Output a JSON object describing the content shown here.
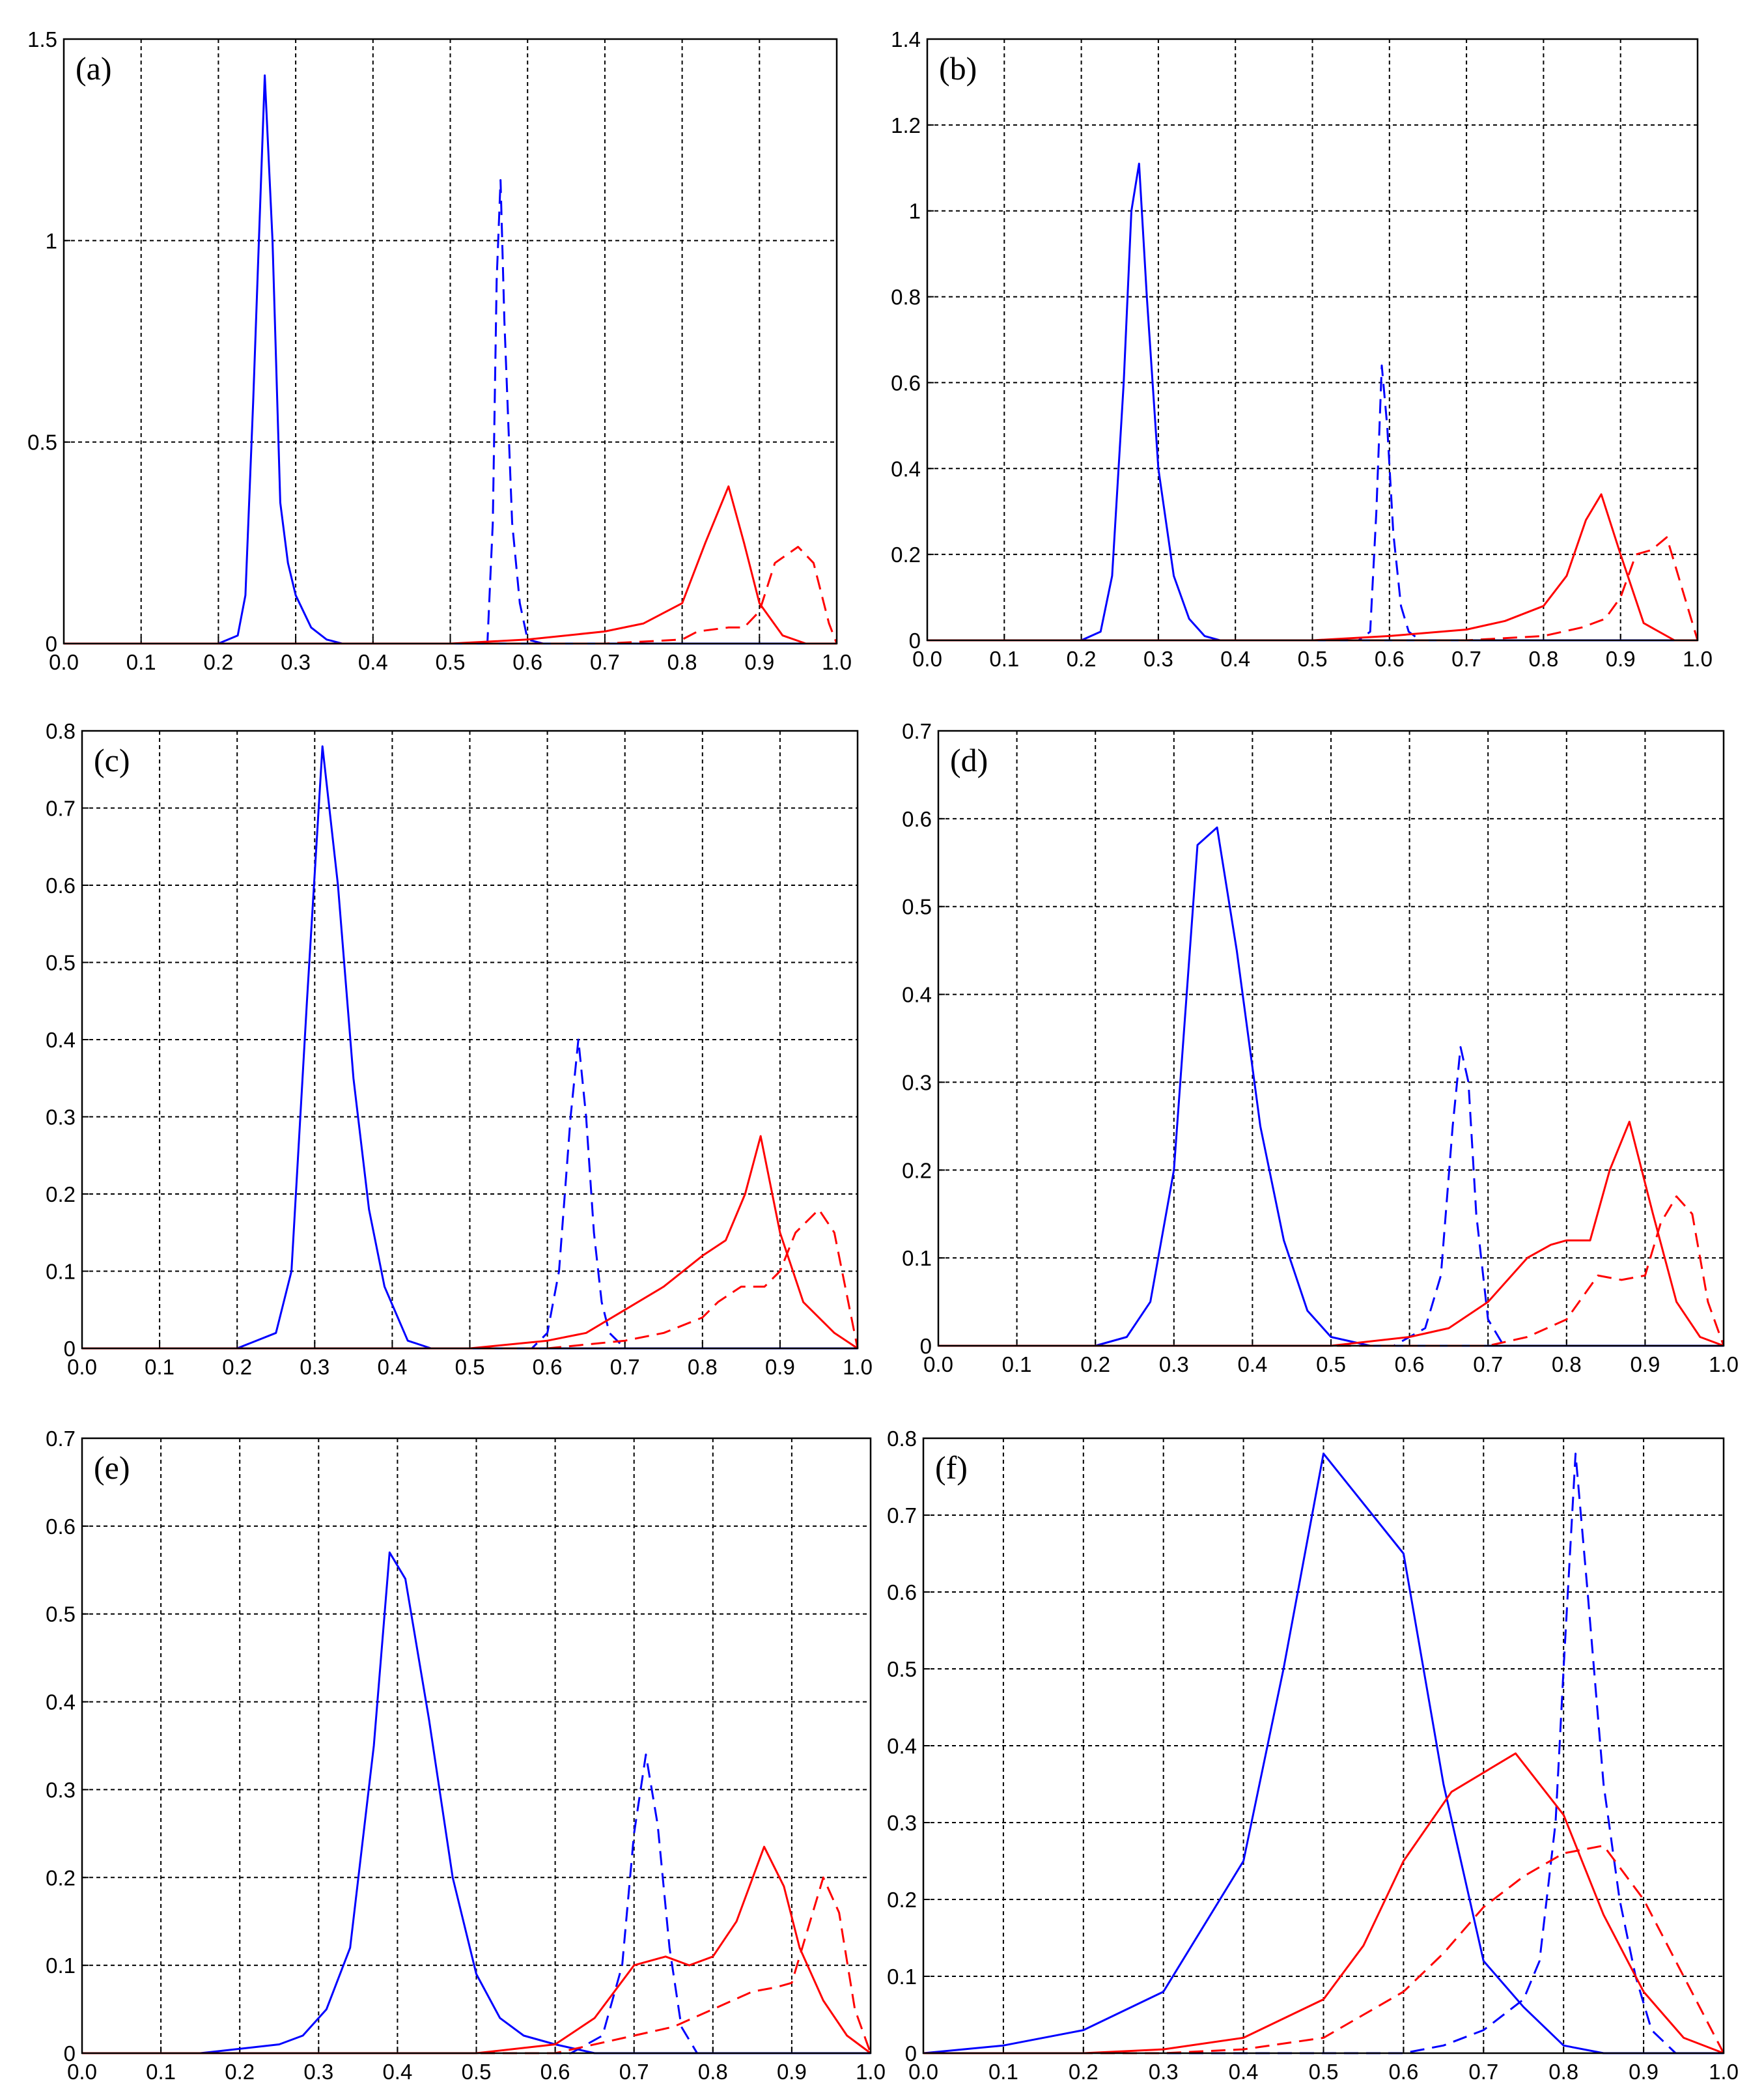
{
  "chart_data": [
    {
      "type": "line",
      "title": "(a)",
      "xlim": [
        0,
        1
      ],
      "ylim": [
        0,
        1.5
      ],
      "xticks": [
        "0.0",
        "0.1",
        "0.2",
        "0.3",
        "0.4",
        "0.5",
        "0.6",
        "0.7",
        "0.8",
        "0.9",
        "1.0"
      ],
      "yticks": [
        [
          "0",
          "0"
        ],
        [
          "0.5",
          "0.5"
        ],
        [
          "1",
          "1"
        ],
        [
          "1.5",
          "1.5"
        ]
      ],
      "grid": true,
      "series": [
        {
          "color": "#0000ff",
          "dash": "solid",
          "x": [
            0,
            0.2,
            0.225,
            0.235,
            0.245,
            0.26,
            0.27,
            0.28,
            0.29,
            0.3,
            0.32,
            0.34,
            0.36,
            1
          ],
          "y": [
            0,
            0,
            0.02,
            0.12,
            0.6,
            1.41,
            1.0,
            0.35,
            0.2,
            0.12,
            0.04,
            0.01,
            0,
            0
          ]
        },
        {
          "color": "#0000ff",
          "dash": "dashed",
          "x": [
            0,
            0.53,
            0.548,
            0.555,
            0.56,
            0.565,
            0.57,
            0.58,
            0.59,
            0.6,
            0.62,
            1
          ],
          "y": [
            0,
            0,
            0,
            0.3,
            0.9,
            1.15,
            0.8,
            0.3,
            0.1,
            0.01,
            0,
            0
          ]
        },
        {
          "color": "#ff0000",
          "dash": "solid",
          "x": [
            0,
            0.5,
            0.6,
            0.7,
            0.75,
            0.8,
            0.83,
            0.86,
            0.88,
            0.9,
            0.93,
            0.96,
            1
          ],
          "y": [
            0,
            0,
            0.01,
            0.03,
            0.05,
            0.1,
            0.25,
            0.39,
            0.25,
            0.1,
            0.02,
            0,
            0
          ]
        },
        {
          "color": "#ff0000",
          "dash": "dashed",
          "x": [
            0,
            0.7,
            0.8,
            0.82,
            0.86,
            0.88,
            0.9,
            0.92,
            0.95,
            0.97,
            0.99,
            1
          ],
          "y": [
            0,
            0,
            0.01,
            0.03,
            0.04,
            0.04,
            0.08,
            0.2,
            0.24,
            0.2,
            0.05,
            0
          ]
        }
      ]
    },
    {
      "type": "line",
      "title": "(b)",
      "xlim": [
        0,
        1
      ],
      "ylim": [
        0,
        1.4
      ],
      "xticks": [
        "0.0",
        "0.1",
        "0.2",
        "0.3",
        "0.4",
        "0.5",
        "0.6",
        "0.7",
        "0.8",
        "0.9",
        "1.0"
      ],
      "yticks": [
        [
          "0",
          "0"
        ],
        [
          "0.2",
          "0.2"
        ],
        [
          "0.4",
          "0.4"
        ],
        [
          "0.6",
          "0.6"
        ],
        [
          "0.8",
          "0.8"
        ],
        [
          "1",
          "1"
        ],
        [
          "1.2",
          "1.2"
        ],
        [
          "1.4",
          "1.4"
        ]
      ],
      "grid": true,
      "series": [
        {
          "color": "#0000ff",
          "dash": "solid",
          "x": [
            0,
            0.2,
            0.225,
            0.24,
            0.255,
            0.265,
            0.275,
            0.285,
            0.3,
            0.32,
            0.34,
            0.36,
            0.38,
            1
          ],
          "y": [
            0,
            0,
            0.02,
            0.15,
            0.6,
            1.0,
            1.11,
            0.8,
            0.4,
            0.15,
            0.05,
            0.01,
            0,
            0
          ]
        },
        {
          "color": "#0000ff",
          "dash": "dashed",
          "x": [
            0,
            0.56,
            0.575,
            0.583,
            0.59,
            0.597,
            0.605,
            0.615,
            0.625,
            0.64,
            1
          ],
          "y": [
            0,
            0,
            0.02,
            0.3,
            0.64,
            0.5,
            0.25,
            0.08,
            0.02,
            0,
            0
          ]
        },
        {
          "color": "#ff0000",
          "dash": "solid",
          "x": [
            0,
            0.5,
            0.6,
            0.7,
            0.75,
            0.8,
            0.83,
            0.855,
            0.875,
            0.9,
            0.93,
            0.97,
            1
          ],
          "y": [
            0,
            0,
            0.01,
            0.025,
            0.045,
            0.08,
            0.15,
            0.28,
            0.34,
            0.2,
            0.04,
            0,
            0
          ]
        },
        {
          "color": "#ff0000",
          "dash": "dashed",
          "x": [
            0,
            0.7,
            0.8,
            0.85,
            0.88,
            0.9,
            0.92,
            0.94,
            0.96,
            0.98,
            1
          ],
          "y": [
            0,
            0,
            0.01,
            0.03,
            0.05,
            0.1,
            0.2,
            0.21,
            0.24,
            0.12,
            0
          ]
        }
      ]
    },
    {
      "type": "line",
      "title": "(c)",
      "xlim": [
        0,
        1
      ],
      "ylim": [
        0,
        0.8
      ],
      "xticks": [
        "0.0",
        "0.1",
        "0.2",
        "0.3",
        "0.4",
        "0.5",
        "0.6",
        "0.7",
        "0.8",
        "0.9",
        "1.0"
      ],
      "yticks": [
        [
          "0",
          "0"
        ],
        [
          "0.1",
          "0.1"
        ],
        [
          "0.2",
          "0.2"
        ],
        [
          "0.3",
          "0.3"
        ],
        [
          "0.4",
          "0.4"
        ],
        [
          "0.5",
          "0.5"
        ],
        [
          "0.6",
          "0.6"
        ],
        [
          "0.7",
          "0.7"
        ],
        [
          "0.8",
          "0.8"
        ]
      ],
      "grid": true,
      "series": [
        {
          "color": "#0000ff",
          "dash": "solid",
          "x": [
            0,
            0.2,
            0.25,
            0.27,
            0.29,
            0.31,
            0.33,
            0.35,
            0.37,
            0.39,
            0.42,
            0.45,
            1
          ],
          "y": [
            0,
            0,
            0.02,
            0.1,
            0.45,
            0.78,
            0.6,
            0.35,
            0.18,
            0.08,
            0.01,
            0,
            0
          ]
        },
        {
          "color": "#0000ff",
          "dash": "dashed",
          "x": [
            0,
            0.58,
            0.6,
            0.615,
            0.63,
            0.64,
            0.65,
            0.66,
            0.67,
            0.68,
            0.7,
            1
          ],
          "y": [
            0,
            0,
            0.02,
            0.1,
            0.3,
            0.4,
            0.3,
            0.15,
            0.06,
            0.02,
            0,
            0
          ]
        },
        {
          "color": "#ff0000",
          "dash": "solid",
          "x": [
            0,
            0.5,
            0.6,
            0.65,
            0.7,
            0.75,
            0.8,
            0.83,
            0.855,
            0.875,
            0.9,
            0.93,
            0.97,
            1
          ],
          "y": [
            0,
            0,
            0.01,
            0.02,
            0.05,
            0.08,
            0.12,
            0.14,
            0.2,
            0.275,
            0.15,
            0.06,
            0.02,
            0
          ]
        },
        {
          "color": "#ff0000",
          "dash": "dashed",
          "x": [
            0,
            0.6,
            0.7,
            0.75,
            0.8,
            0.82,
            0.85,
            0.88,
            0.9,
            0.92,
            0.95,
            0.97,
            0.99,
            1
          ],
          "y": [
            0,
            0,
            0.01,
            0.02,
            0.04,
            0.06,
            0.08,
            0.08,
            0.1,
            0.15,
            0.18,
            0.15,
            0.05,
            0
          ]
        }
      ]
    },
    {
      "type": "line",
      "title": "(d)",
      "xlim": [
        0,
        1
      ],
      "ylim": [
        0,
        0.7
      ],
      "xticks": [
        "0.0",
        "0.1",
        "0.2",
        "0.3",
        "0.4",
        "0.5",
        "0.6",
        "0.7",
        "0.8",
        "0.9",
        "1.0"
      ],
      "yticks": [
        [
          "0",
          "0"
        ],
        [
          "0.1",
          "0.1"
        ],
        [
          "0.2",
          "0.2"
        ],
        [
          "0.3",
          "0.3"
        ],
        [
          "0.4",
          "0.4"
        ],
        [
          "0.5",
          "0.5"
        ],
        [
          "0.6",
          "0.6"
        ],
        [
          "0.7",
          "0.7"
        ]
      ],
      "grid": true,
      "series": [
        {
          "color": "#0000ff",
          "dash": "solid",
          "x": [
            0,
            0.15,
            0.2,
            0.24,
            0.27,
            0.3,
            0.33,
            0.355,
            0.38,
            0.41,
            0.44,
            0.47,
            0.5,
            0.55,
            0.6,
            1
          ],
          "y": [
            0,
            0,
            0,
            0.01,
            0.05,
            0.2,
            0.57,
            0.59,
            0.45,
            0.25,
            0.12,
            0.04,
            0.01,
            0,
            0,
            0
          ]
        },
        {
          "color": "#0000ff",
          "dash": "dashed",
          "x": [
            0,
            0.58,
            0.62,
            0.64,
            0.655,
            0.665,
            0.675,
            0.685,
            0.7,
            0.72,
            1
          ],
          "y": [
            0,
            0,
            0.02,
            0.08,
            0.25,
            0.34,
            0.3,
            0.15,
            0.03,
            0,
            0
          ]
        },
        {
          "color": "#ff0000",
          "dash": "solid",
          "x": [
            0,
            0.5,
            0.6,
            0.65,
            0.7,
            0.75,
            0.78,
            0.8,
            0.83,
            0.855,
            0.88,
            0.91,
            0.94,
            0.97,
            1
          ],
          "y": [
            0,
            0,
            0.01,
            0.02,
            0.05,
            0.1,
            0.115,
            0.12,
            0.12,
            0.2,
            0.255,
            0.15,
            0.05,
            0.01,
            0
          ]
        },
        {
          "color": "#ff0000",
          "dash": "dashed",
          "x": [
            0,
            0.7,
            0.75,
            0.8,
            0.84,
            0.87,
            0.9,
            0.92,
            0.94,
            0.96,
            0.98,
            1
          ],
          "y": [
            0,
            0,
            0.01,
            0.03,
            0.08,
            0.075,
            0.08,
            0.14,
            0.17,
            0.15,
            0.05,
            0
          ]
        }
      ]
    },
    {
      "type": "line",
      "title": "(e)",
      "xlim": [
        0,
        1
      ],
      "ylim": [
        0,
        0.7
      ],
      "xticks": [
        "0.0",
        "0.1",
        "0.2",
        "0.3",
        "0.4",
        "0.5",
        "0.6",
        "0.7",
        "0.8",
        "0.9",
        "1.0"
      ],
      "yticks": [
        [
          "0",
          "0"
        ],
        [
          "0.1",
          "0.1"
        ],
        [
          "0.2",
          "0.2"
        ],
        [
          "0.3",
          "0.3"
        ],
        [
          "0.4",
          "0.4"
        ],
        [
          "0.5",
          "0.5"
        ],
        [
          "0.6",
          "0.6"
        ],
        [
          "0.7",
          "0.7"
        ]
      ],
      "grid": true,
      "series": [
        {
          "color": "#0000ff",
          "dash": "solid",
          "x": [
            0,
            0.15,
            0.25,
            0.28,
            0.31,
            0.34,
            0.37,
            0.39,
            0.41,
            0.44,
            0.47,
            0.5,
            0.53,
            0.56,
            0.6,
            0.65,
            1
          ],
          "y": [
            0,
            0,
            0.01,
            0.02,
            0.05,
            0.12,
            0.35,
            0.57,
            0.54,
            0.38,
            0.2,
            0.09,
            0.04,
            0.02,
            0.01,
            0,
            0
          ]
        },
        {
          "color": "#0000ff",
          "dash": "dashed",
          "x": [
            0,
            0.62,
            0.66,
            0.685,
            0.7,
            0.715,
            0.73,
            0.745,
            0.76,
            0.78,
            1
          ],
          "y": [
            0,
            0,
            0.02,
            0.1,
            0.25,
            0.34,
            0.26,
            0.12,
            0.03,
            0,
            0
          ]
        },
        {
          "color": "#ff0000",
          "dash": "solid",
          "x": [
            0,
            0.5,
            0.6,
            0.65,
            0.7,
            0.74,
            0.77,
            0.8,
            0.83,
            0.865,
            0.89,
            0.91,
            0.94,
            0.97,
            1
          ],
          "y": [
            0,
            0,
            0.01,
            0.04,
            0.1,
            0.11,
            0.1,
            0.11,
            0.15,
            0.235,
            0.19,
            0.12,
            0.06,
            0.02,
            0
          ]
        },
        {
          "color": "#ff0000",
          "dash": "dashed",
          "x": [
            0,
            0.6,
            0.7,
            0.75,
            0.8,
            0.85,
            0.88,
            0.9,
            0.92,
            0.94,
            0.96,
            0.98,
            1
          ],
          "y": [
            0,
            0,
            0.02,
            0.03,
            0.05,
            0.07,
            0.075,
            0.08,
            0.14,
            0.2,
            0.16,
            0.05,
            0
          ]
        }
      ]
    },
    {
      "type": "line",
      "title": "(f)",
      "xlim": [
        0,
        1
      ],
      "ylim": [
        0,
        0.8
      ],
      "xticks": [
        "0.0",
        "0.1",
        "0.2",
        "0.3",
        "0.4",
        "0.5",
        "0.6",
        "0.7",
        "0.8",
        "0.9",
        "1.0"
      ],
      "yticks": [
        [
          "0",
          "0"
        ],
        [
          "0.1",
          "0.1"
        ],
        [
          "0.2",
          "0.2"
        ],
        [
          "0.3",
          "0.3"
        ],
        [
          "0.4",
          "0.4"
        ],
        [
          "0.5",
          "0.5"
        ],
        [
          "0.6",
          "0.6"
        ],
        [
          "0.7",
          "0.7"
        ],
        [
          "0.8",
          "0.8"
        ]
      ],
      "grid": true,
      "series": [
        {
          "color": "#0000ff",
          "dash": "solid",
          "x": [
            0,
            0.1,
            0.2,
            0.3,
            0.4,
            0.45,
            0.5,
            0.6,
            0.65,
            0.7,
            0.75,
            0.8,
            0.85,
            0.9,
            1
          ],
          "y": [
            0,
            0.01,
            0.03,
            0.08,
            0.25,
            0.5,
            0.78,
            0.65,
            0.35,
            0.12,
            0.06,
            0.01,
            0,
            0,
            0
          ]
        },
        {
          "color": "#0000ff",
          "dash": "dashed",
          "x": [
            0,
            0.5,
            0.6,
            0.65,
            0.7,
            0.75,
            0.77,
            0.79,
            0.8,
            0.815,
            0.83,
            0.85,
            0.87,
            0.89,
            0.91,
            0.94,
            1
          ],
          "y": [
            0,
            0,
            0,
            0.01,
            0.03,
            0.07,
            0.12,
            0.3,
            0.5,
            0.78,
            0.6,
            0.35,
            0.2,
            0.1,
            0.03,
            0,
            0
          ]
        },
        {
          "color": "#ff0000",
          "dash": "solid",
          "x": [
            0,
            0.2,
            0.3,
            0.4,
            0.5,
            0.55,
            0.6,
            0.66,
            0.74,
            0.8,
            0.85,
            0.9,
            0.95,
            1
          ],
          "y": [
            0,
            0,
            0.005,
            0.02,
            0.07,
            0.14,
            0.25,
            0.34,
            0.39,
            0.31,
            0.18,
            0.08,
            0.02,
            0
          ]
        },
        {
          "color": "#ff0000",
          "dash": "dashed",
          "x": [
            0,
            0.3,
            0.4,
            0.5,
            0.55,
            0.6,
            0.65,
            0.7,
            0.75,
            0.8,
            0.85,
            0.9,
            0.95,
            1
          ],
          "y": [
            0,
            0,
            0.005,
            0.02,
            0.05,
            0.08,
            0.13,
            0.19,
            0.23,
            0.26,
            0.27,
            0.2,
            0.1,
            0
          ]
        }
      ]
    }
  ]
}
